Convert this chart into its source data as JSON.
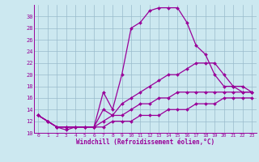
{
  "xlabel": "Windchill (Refroidissement éolien,°C)",
  "bg_color": "#cce8f0",
  "line_color": "#990099",
  "grid_color": "#99bbcc",
  "series": [
    {
      "x": [
        0,
        1,
        2,
        3,
        4,
        5,
        6,
        7,
        8,
        9,
        10,
        11,
        12,
        13,
        14,
        15,
        16,
        17,
        18,
        19,
        20,
        21,
        22,
        23
      ],
      "y": [
        13,
        12,
        11,
        11,
        11,
        11,
        11,
        17,
        14,
        20,
        28,
        29,
        31,
        31.5,
        31.5,
        31.5,
        29,
        25,
        23.5,
        20,
        18,
        18,
        17,
        17
      ]
    },
    {
      "x": [
        0,
        1,
        2,
        3,
        4,
        5,
        6,
        7,
        8,
        9,
        10,
        11,
        12,
        13,
        14,
        15,
        16,
        17,
        18,
        19,
        20,
        21,
        22,
        23
      ],
      "y": [
        13,
        12,
        11,
        11,
        11,
        11,
        11,
        14,
        13,
        15,
        16,
        17,
        18,
        19,
        20,
        20,
        21,
        22,
        22,
        22,
        20,
        18,
        18,
        17
      ]
    },
    {
      "x": [
        0,
        1,
        2,
        3,
        4,
        5,
        6,
        7,
        8,
        9,
        10,
        11,
        12,
        13,
        14,
        15,
        16,
        17,
        18,
        19,
        20,
        21,
        22,
        23
      ],
      "y": [
        13,
        12,
        11,
        11,
        11,
        11,
        11,
        12,
        13,
        13,
        14,
        15,
        15,
        16,
        16,
        17,
        17,
        17,
        17,
        17,
        17,
        17,
        17,
        17
      ]
    },
    {
      "x": [
        0,
        1,
        2,
        3,
        4,
        5,
        6,
        7,
        8,
        9,
        10,
        11,
        12,
        13,
        14,
        15,
        16,
        17,
        18,
        19,
        20,
        21,
        22,
        23
      ],
      "y": [
        13,
        12,
        11,
        10.5,
        11,
        11,
        11,
        11,
        12,
        12,
        12,
        13,
        13,
        13,
        14,
        14,
        14,
        15,
        15,
        15,
        16,
        16,
        16,
        16
      ]
    }
  ],
  "xlim": [
    -0.5,
    23.5
  ],
  "ylim": [
    10,
    32
  ],
  "yticks": [
    10,
    12,
    14,
    16,
    18,
    20,
    22,
    24,
    26,
    28,
    30
  ],
  "xticks": [
    0,
    1,
    2,
    3,
    4,
    5,
    6,
    7,
    8,
    9,
    10,
    11,
    12,
    13,
    14,
    15,
    16,
    17,
    18,
    19,
    20,
    21,
    22,
    23
  ],
  "marker": "D",
  "markersize": 2.0,
  "linewidth": 0.9
}
